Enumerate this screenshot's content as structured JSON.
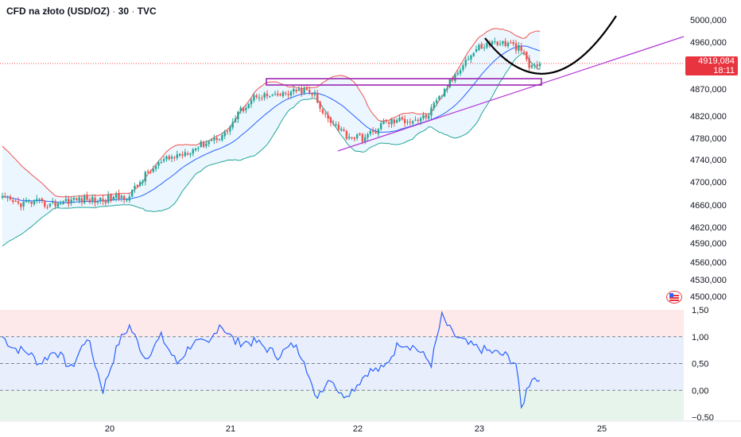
{
  "header": {
    "symbol": "CFD na złoto (USD/OZ)",
    "interval": "30",
    "source": "TVC",
    "separator": "·"
  },
  "last_price": {
    "value": "4919,084",
    "countdown": "18:11",
    "color": "#e8343f"
  },
  "colors": {
    "up_candle": "#26a69a",
    "down_candle": "#ef5350",
    "bb_upper": "#ef5350",
    "bb_lower": "#26a69a",
    "bb_basis": "#2962ff",
    "bb_fill": "#e3f2fd",
    "indicator_line": "#2962ff",
    "trend_line": "#b33ad8",
    "rectangle": "#9c27b0",
    "curve": "#000000"
  },
  "chart_data": [
    {
      "type": "candlestick",
      "xlabel": "",
      "ylabel": "",
      "x_ticks": [
        "20",
        "21",
        "22",
        "23",
        "25"
      ],
      "y_ticks": [
        "5000,000",
        "4960,000",
        "4870,000",
        "4820,000",
        "4780,000",
        "4740,000",
        "4700,000",
        "4660,000",
        "4620,000",
        "4590,000",
        "4560,000",
        "4530,000",
        "4500,000"
      ],
      "ylim": [
        4500,
        5000
      ],
      "overlays": [
        "bollinger_bands",
        "trend_line",
        "rectangle",
        "curve"
      ],
      "waypoints_close": [
        {
          "t": 0,
          "v": 4670
        },
        {
          "t": 6,
          "v": 4662
        },
        {
          "t": 12,
          "v": 4665
        },
        {
          "t": 18,
          "v": 4660
        },
        {
          "t": 24,
          "v": 4668
        },
        {
          "t": 30,
          "v": 4670
        },
        {
          "t": 36,
          "v": 4668
        },
        {
          "t": 42,
          "v": 4672
        },
        {
          "t": 48,
          "v": 4676
        },
        {
          "t": 54,
          "v": 4712
        },
        {
          "t": 60,
          "v": 4735
        },
        {
          "t": 66,
          "v": 4748
        },
        {
          "t": 72,
          "v": 4760
        },
        {
          "t": 78,
          "v": 4775
        },
        {
          "t": 84,
          "v": 4788
        },
        {
          "t": 90,
          "v": 4830
        },
        {
          "t": 96,
          "v": 4860
        },
        {
          "t": 102,
          "v": 4855
        },
        {
          "t": 108,
          "v": 4862
        },
        {
          "t": 114,
          "v": 4868
        },
        {
          "t": 118,
          "v": 4858
        },
        {
          "t": 120,
          "v": 4830
        },
        {
          "t": 126,
          "v": 4805
        },
        {
          "t": 130,
          "v": 4785
        },
        {
          "t": 136,
          "v": 4780
        },
        {
          "t": 140,
          "v": 4790
        },
        {
          "t": 144,
          "v": 4808
        },
        {
          "t": 150,
          "v": 4812
        },
        {
          "t": 156,
          "v": 4814
        },
        {
          "t": 160,
          "v": 4818
        },
        {
          "t": 164,
          "v": 4845
        },
        {
          "t": 168,
          "v": 4875
        },
        {
          "t": 174,
          "v": 4920
        },
        {
          "t": 180,
          "v": 4950
        },
        {
          "t": 186,
          "v": 4960
        },
        {
          "t": 192,
          "v": 4955
        },
        {
          "t": 196,
          "v": 4945
        },
        {
          "t": 199,
          "v": 4912
        },
        {
          "t": 203,
          "v": 4919
        }
      ],
      "indicator": {
        "name": "",
        "ylim": [
          -0.5,
          1.5
        ],
        "y_ticks": [
          "1,50",
          "1,00",
          "0,50",
          "0,00",
          "−0,50"
        ],
        "levels": [
          1.0,
          0.5,
          0.0
        ],
        "waypoints": [
          {
            "t": 0,
            "v": 1.0
          },
          {
            "t": 4,
            "v": 0.8
          },
          {
            "t": 10,
            "v": 0.7
          },
          {
            "t": 14,
            "v": 0.5
          },
          {
            "t": 20,
            "v": 0.75
          },
          {
            "t": 26,
            "v": 0.4
          },
          {
            "t": 32,
            "v": 1.0
          },
          {
            "t": 38,
            "v": 0.0
          },
          {
            "t": 44,
            "v": 0.9
          },
          {
            "t": 48,
            "v": 1.2
          },
          {
            "t": 54,
            "v": 0.6
          },
          {
            "t": 60,
            "v": 1.0
          },
          {
            "t": 66,
            "v": 0.5
          },
          {
            "t": 72,
            "v": 0.9
          },
          {
            "t": 78,
            "v": 0.85
          },
          {
            "t": 82,
            "v": 1.25
          },
          {
            "t": 88,
            "v": 0.9
          },
          {
            "t": 96,
            "v": 0.9
          },
          {
            "t": 104,
            "v": 0.65
          },
          {
            "t": 110,
            "v": 0.85
          },
          {
            "t": 114,
            "v": 0.6
          },
          {
            "t": 118,
            "v": -0.15
          },
          {
            "t": 124,
            "v": 0.25
          },
          {
            "t": 128,
            "v": -0.1
          },
          {
            "t": 132,
            "v": 0.0
          },
          {
            "t": 138,
            "v": 0.35
          },
          {
            "t": 144,
            "v": 0.4
          },
          {
            "t": 150,
            "v": 0.9
          },
          {
            "t": 156,
            "v": 0.8
          },
          {
            "t": 162,
            "v": 0.5
          },
          {
            "t": 166,
            "v": 1.38
          },
          {
            "t": 170,
            "v": 1.05
          },
          {
            "t": 176,
            "v": 0.85
          },
          {
            "t": 182,
            "v": 0.75
          },
          {
            "t": 190,
            "v": 0.65
          },
          {
            "t": 194,
            "v": 0.5
          },
          {
            "t": 196,
            "v": -0.35
          },
          {
            "t": 198,
            "v": 0.0
          },
          {
            "t": 200,
            "v": 0.25
          },
          {
            "t": 203,
            "v": 0.18
          }
        ]
      }
    }
  ]
}
